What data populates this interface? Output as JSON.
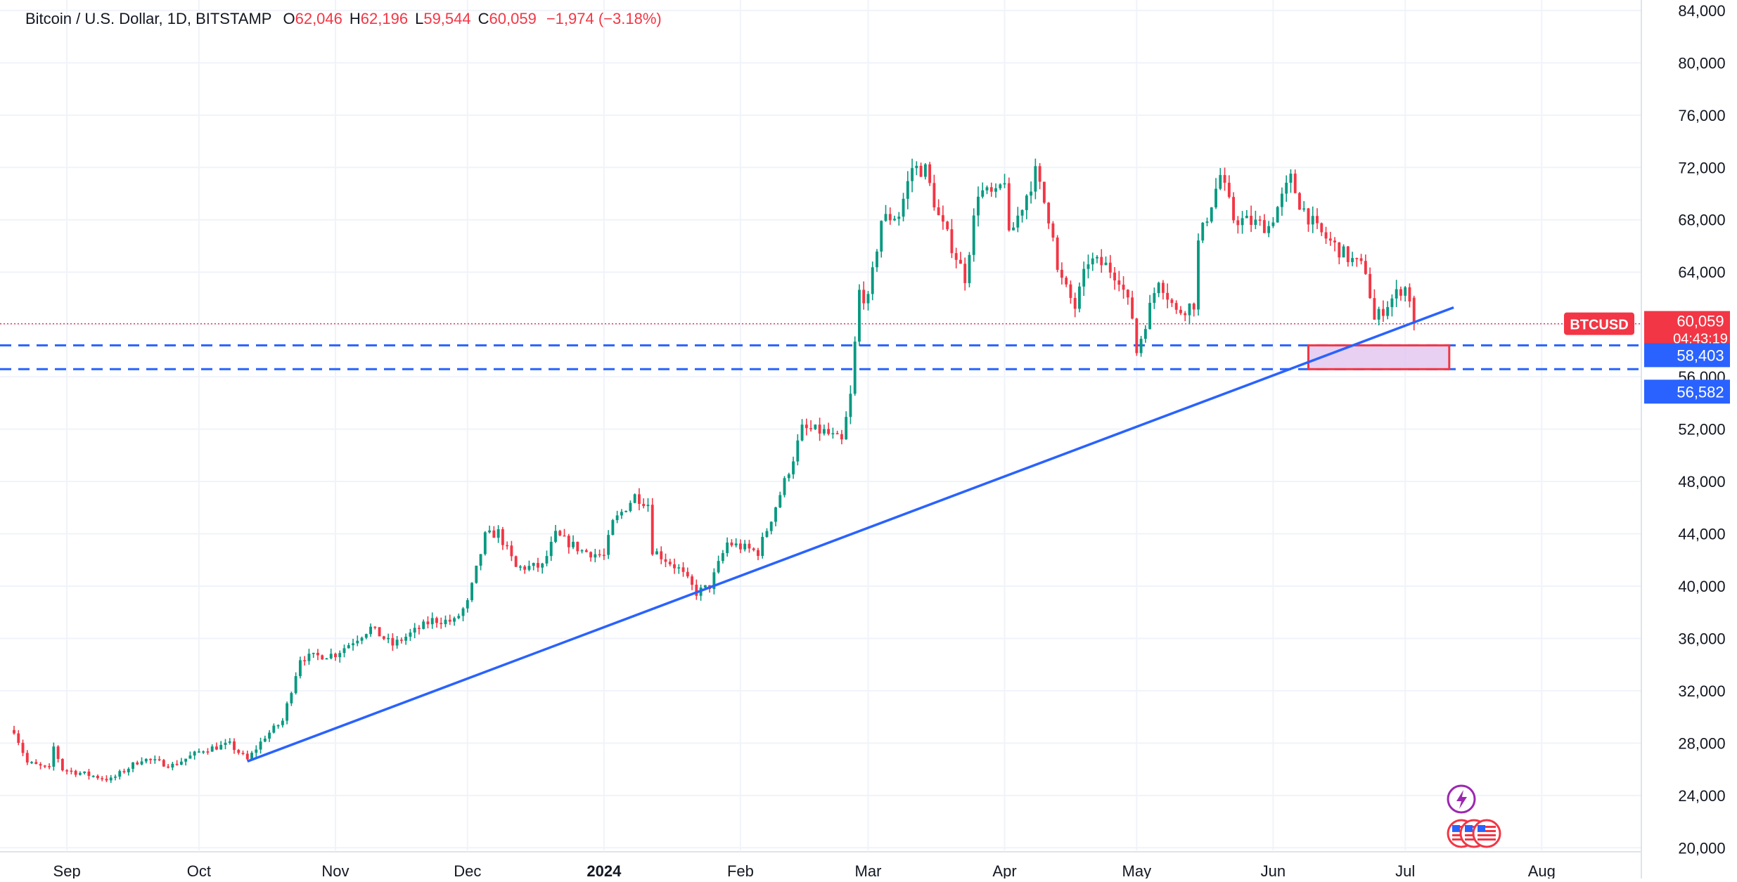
{
  "legend": {
    "symbol": "Bitcoin / U.S. Dollar, 1D, BITSTAMP",
    "open_label": "O",
    "open": "62,046",
    "high_label": "H",
    "high": "62,196",
    "low_label": "L",
    "low": "59,544",
    "close_label": "C",
    "close": "60,059",
    "change": "−1,974 (−3.18%)"
  },
  "price_tag": {
    "ticker": "BTCUSD",
    "price": "60,059",
    "countdown": "04:43:19",
    "color": "#f23645"
  },
  "levels": [
    {
      "label": "58,403",
      "value": 58403,
      "color": "#2962ff"
    },
    {
      "label": "56,582",
      "value": 56582,
      "color": "#2962ff"
    }
  ],
  "colors": {
    "up": "#089981",
    "down": "#f23645",
    "trendline": "#2962ff",
    "zone_border": "#f23645",
    "zone_fill": "#e1c4ef"
  },
  "icons": [
    "lightning-event-icon",
    "us-flag-event-icon",
    "us-flag-event-icon",
    "us-flag-event-icon"
  ],
  "chart_data": {
    "type": "candlestick",
    "title": "Bitcoin / U.S. Dollar, 1D, BITSTAMP",
    "y_ticks": [
      20000,
      24000,
      28000,
      32000,
      36000,
      40000,
      44000,
      48000,
      52000,
      56000,
      60000,
      64000,
      68000,
      72000,
      76000,
      80000,
      84000
    ],
    "y_tick_labels": [
      "20,000",
      "24,000",
      "28,000",
      "32,000",
      "36,000",
      "40,000",
      "44,000",
      "48,000",
      "52,000",
      "56,000",
      "60,000",
      "64,000",
      "68,000",
      "72,000",
      "76,000",
      "80,000",
      "84,000"
    ],
    "ylim": [
      19800,
      84800
    ],
    "xlim": [
      "2023-08-20",
      "2024-08-23"
    ],
    "x_ticks": [
      {
        "date": "2023-09-01",
        "label": "Sep",
        "bold": false
      },
      {
        "date": "2023-10-01",
        "label": "Oct",
        "bold": false
      },
      {
        "date": "2023-11-01",
        "label": "Nov",
        "bold": false
      },
      {
        "date": "2023-12-01",
        "label": "Dec",
        "bold": false
      },
      {
        "date": "2024-01-01",
        "label": "2024",
        "bold": true
      },
      {
        "date": "2024-02-01",
        "label": "Feb",
        "bold": false
      },
      {
        "date": "2024-03-01",
        "label": "Mar",
        "bold": false
      },
      {
        "date": "2024-04-01",
        "label": "Apr",
        "bold": false
      },
      {
        "date": "2024-05-01",
        "label": "May",
        "bold": false
      },
      {
        "date": "2024-06-01",
        "label": "Jun",
        "bold": false
      },
      {
        "date": "2024-07-01",
        "label": "Jul",
        "bold": false
      },
      {
        "date": "2024-08-01",
        "label": "Aug",
        "bold": false
      }
    ],
    "grid": true,
    "last_close": 60059,
    "horizontal_lines": [
      58403,
      56582
    ],
    "trendline": {
      "start": {
        "date": "2023-10-12",
        "price": 26600
      },
      "end": {
        "date": "2024-07-12",
        "price": 61300
      }
    },
    "zone": {
      "start": "2024-06-09",
      "end": "2024-07-11",
      "top": 58403,
      "bottom": 56582
    },
    "anchors": [
      [
        "2023-08-20",
        29000
      ],
      [
        "2023-08-23",
        26500
      ],
      [
        "2023-08-28",
        26000
      ],
      [
        "2023-08-29",
        27700
      ],
      [
        "2023-08-31",
        26000
      ],
      [
        "2023-09-11",
        25200
      ],
      [
        "2023-09-18",
        26800
      ],
      [
        "2023-09-25",
        26300
      ],
      [
        "2023-10-02",
        27500
      ],
      [
        "2023-10-08",
        27900
      ],
      [
        "2023-10-12",
        26700
      ],
      [
        "2023-10-16",
        28500
      ],
      [
        "2023-10-20",
        29700
      ],
      [
        "2023-10-24",
        34500
      ],
      [
        "2023-11-01",
        34800
      ],
      [
        "2023-11-09",
        36800
      ],
      [
        "2023-11-14",
        35500
      ],
      [
        "2023-11-23",
        37400
      ],
      [
        "2023-11-28",
        37300
      ],
      [
        "2023-12-01",
        38700
      ],
      [
        "2023-12-05",
        43800
      ],
      [
        "2023-12-08",
        44100
      ],
      [
        "2023-12-12",
        41400
      ],
      [
        "2023-12-18",
        41500
      ],
      [
        "2023-12-21",
        43900
      ],
      [
        "2023-12-27",
        42700
      ],
      [
        "2024-01-01",
        42300
      ],
      [
        "2024-01-03",
        44800
      ],
      [
        "2024-01-08",
        46900
      ],
      [
        "2024-01-11",
        46300
      ],
      [
        "2024-01-12",
        42800
      ],
      [
        "2024-01-18",
        41300
      ],
      [
        "2024-01-22",
        39500
      ],
      [
        "2024-01-25",
        40000
      ],
      [
        "2024-01-29",
        43300
      ],
      [
        "2024-02-01",
        43000
      ],
      [
        "2024-02-05",
        42600
      ],
      [
        "2024-02-08",
        45200
      ],
      [
        "2024-02-13",
        49800
      ],
      [
        "2024-02-15",
        52000
      ],
      [
        "2024-02-20",
        51800
      ],
      [
        "2024-02-24",
        51000
      ],
      [
        "2024-02-26",
        54500
      ],
      [
        "2024-02-28",
        62500
      ],
      [
        "2024-03-01",
        61800
      ],
      [
        "2024-03-04",
        68000
      ],
      [
        "2024-03-08",
        68400
      ],
      [
        "2024-03-11",
        72000
      ],
      [
        "2024-03-14",
        71800
      ],
      [
        "2024-03-17",
        68200
      ],
      [
        "2024-03-20",
        66000
      ],
      [
        "2024-03-23",
        63600
      ],
      [
        "2024-03-26",
        70200
      ],
      [
        "2024-03-30",
        69800
      ],
      [
        "2024-04-01",
        71200
      ],
      [
        "2024-04-02",
        66600
      ],
      [
        "2024-04-08",
        71600
      ],
      [
        "2024-04-12",
        67100
      ],
      [
        "2024-04-13",
        64000
      ],
      [
        "2024-04-17",
        61300
      ],
      [
        "2024-04-20",
        64900
      ],
      [
        "2024-04-24",
        64500
      ],
      [
        "2024-04-27",
        63600
      ],
      [
        "2024-04-30",
        60600
      ],
      [
        "2024-05-01",
        57900
      ],
      [
        "2024-05-06",
        63600
      ],
      [
        "2024-05-10",
        60900
      ],
      [
        "2024-05-14",
        61600
      ],
      [
        "2024-05-15",
        66200
      ],
      [
        "2024-05-20",
        71400
      ],
      [
        "2024-05-23",
        68100
      ],
      [
        "2024-05-31",
        67500
      ],
      [
        "2024-06-05",
        71100
      ],
      [
        "2024-06-07",
        69300
      ],
      [
        "2024-06-11",
        67200
      ],
      [
        "2024-06-15",
        66000
      ],
      [
        "2024-06-18",
        65100
      ],
      [
        "2024-06-22",
        64200
      ],
      [
        "2024-06-24",
        60300
      ],
      [
        "2024-06-27",
        61600
      ],
      [
        "2024-06-30",
        62700
      ],
      [
        "2024-07-01",
        62800
      ],
      [
        "2024-07-02",
        62046
      ]
    ],
    "last_candle": {
      "date": "2024-07-03",
      "open": 62046,
      "high": 62196,
      "low": 59544,
      "close": 60059
    }
  }
}
